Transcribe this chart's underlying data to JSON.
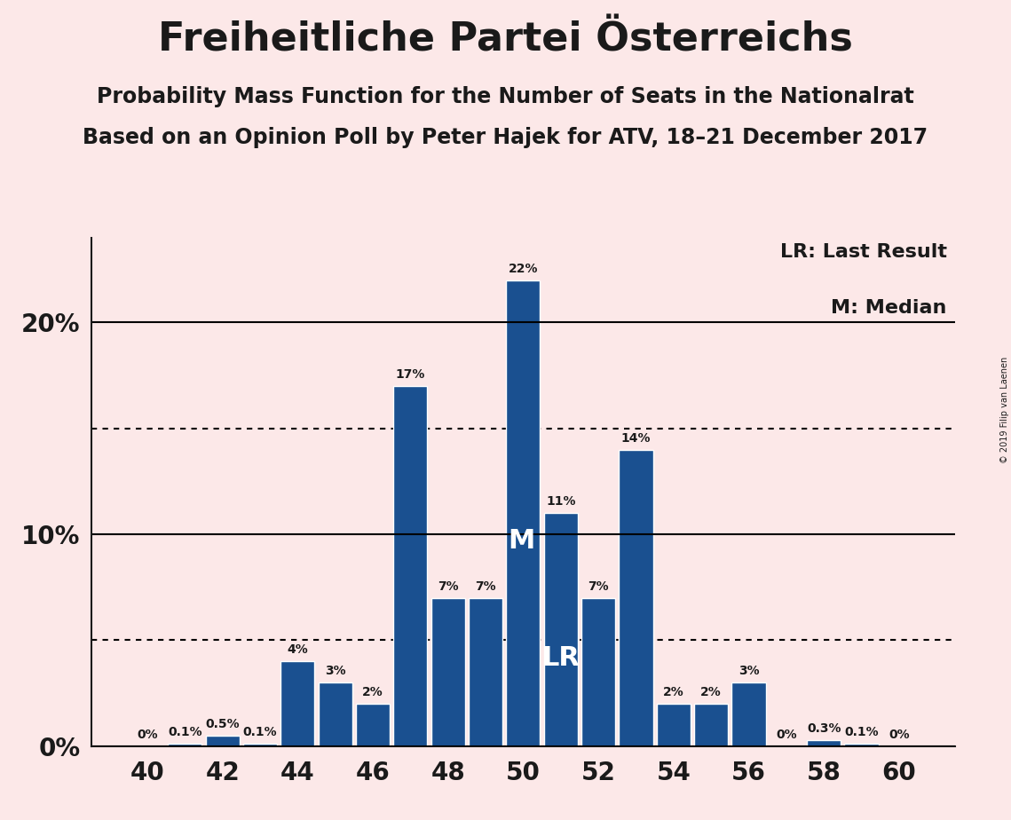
{
  "title": "Freiheitliche Partei Österreichs",
  "subtitle1": "Probability Mass Function for the Number of Seats in the Nationalrat",
  "subtitle2": "Based on an Opinion Poll by Peter Hajek for ATV, 18–21 December 2017",
  "copyright": "© 2019 Filip van Laenen",
  "seats": [
    40,
    41,
    42,
    43,
    44,
    45,
    46,
    47,
    48,
    49,
    50,
    51,
    52,
    53,
    54,
    55,
    56,
    57,
    58,
    59,
    60
  ],
  "values": [
    0.0,
    0.1,
    0.5,
    0.1,
    4.0,
    3.0,
    2.0,
    17.0,
    7.0,
    7.0,
    22.0,
    11.0,
    7.0,
    14.0,
    2.0,
    2.0,
    3.0,
    0.0,
    0.3,
    0.1,
    0.0
  ],
  "bar_color": "#1a5090",
  "background_color": "#fce8e8",
  "axis_color": "#1a1a1a",
  "median_seat": 50,
  "last_result_seat": 51,
  "dotted_line_1": 5.0,
  "dotted_line_2": 15.0,
  "ylim": [
    0,
    24
  ],
  "yticks": [
    0,
    10,
    20
  ],
  "xlim": [
    38.5,
    61.5
  ],
  "xticks": [
    40,
    42,
    44,
    46,
    48,
    50,
    52,
    54,
    56,
    58,
    60
  ],
  "label_fontsize": 10,
  "tick_fontsize": 20,
  "title_fontsize": 32,
  "subtitle_fontsize": 17,
  "legend_fontsize": 16
}
